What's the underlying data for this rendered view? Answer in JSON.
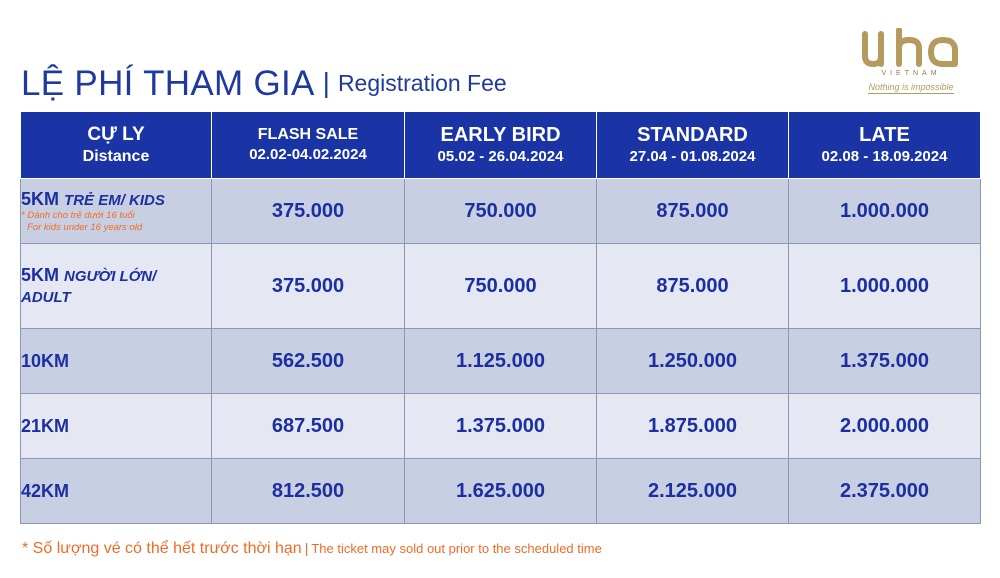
{
  "header": {
    "title": "LỆ PHÍ THAM GIA",
    "separator": "|",
    "subtitle": "Registration Fee"
  },
  "logo": {
    "mark": "vha",
    "country": "VIETNAM",
    "tagline": "Nothing is impossible"
  },
  "table": {
    "columns": [
      {
        "label": "CỰ LY",
        "sub": "Distance"
      },
      {
        "label": "FLASH SALE",
        "sub": "02.02-04.02.2024"
      },
      {
        "label": "EARLY BIRD",
        "sub": "05.02 - 26.04.2024"
      },
      {
        "label": "STANDARD",
        "sub": "27.04 - 01.08.2024"
      },
      {
        "label": "LATE",
        "sub": "02.08 - 18.09.2024"
      }
    ],
    "rows": [
      {
        "distance": "5KM",
        "distance_suffix": "TRẺ EM/ KIDS",
        "note_vi": "* Dành cho trẻ dưới 16 tuổi",
        "note_en": "For kids under 16 years old",
        "prices": [
          "375.000",
          "750.000",
          "875.000",
          "1.000.000"
        ]
      },
      {
        "distance": "5KM",
        "distance_suffix": "NGƯỜI LỚN/",
        "distance_suffix2": "ADULT",
        "prices": [
          "375.000",
          "750.000",
          "875.000",
          "1.000.000"
        ]
      },
      {
        "distance": "10KM",
        "prices": [
          "562.500",
          "1.125.000",
          "1.250.000",
          "1.375.000"
        ]
      },
      {
        "distance": "21KM",
        "prices": [
          "687.500",
          "1.375.000",
          "1.875.000",
          "2.000.000"
        ]
      },
      {
        "distance": "42KM",
        "prices": [
          "812.500",
          "1.625.000",
          "2.125.000",
          "2.375.000"
        ]
      }
    ]
  },
  "footer": {
    "note_vi": "* Số lượng vé có thể hết trước thời hạn",
    "separator": "|",
    "note_en": "The ticket may sold out prior to the scheduled time"
  },
  "colors": {
    "header_bg": "#1b34a5",
    "text_blue": "#1c2fa0",
    "row_dark": "#c9cfe3",
    "row_light": "#e5e8f3",
    "accent_orange": "#ef6b27",
    "logo_gold": "#b59a5e"
  }
}
